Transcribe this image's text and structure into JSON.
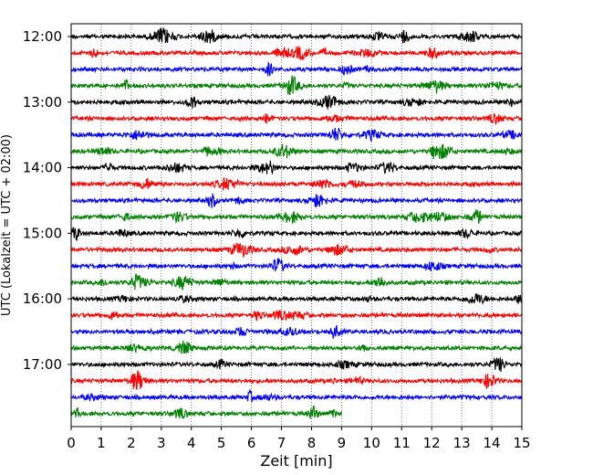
{
  "chart_data": {
    "type": "line",
    "title": "",
    "xlabel": "Zeit  [min]",
    "ylabel": "UTC (Lokalzeit = UTC + 02:00)",
    "xlim": [
      0,
      15
    ],
    "x_ticks": [
      "0",
      "1",
      "2",
      "3",
      "4",
      "5",
      "6",
      "7",
      "8",
      "9",
      "10",
      "11",
      "12",
      "13",
      "14",
      "15"
    ],
    "y_ticks": [
      "12:00",
      "13:00",
      "14:00",
      "15:00",
      "16:00",
      "17:00"
    ],
    "grid": "vertical dotted",
    "trace_colors": [
      "#000000",
      "#ff0000",
      "#0000ff",
      "#008000"
    ],
    "traces": [
      {
        "start": "12:00",
        "color": "#000000",
        "duration_min": 15
      },
      {
        "start": "12:15",
        "color": "#ff0000",
        "duration_min": 15
      },
      {
        "start": "12:30",
        "color": "#0000ff",
        "duration_min": 15
      },
      {
        "start": "12:45",
        "color": "#008000",
        "duration_min": 15
      },
      {
        "start": "13:00",
        "color": "#000000",
        "duration_min": 15
      },
      {
        "start": "13:15",
        "color": "#ff0000",
        "duration_min": 15
      },
      {
        "start": "13:30",
        "color": "#0000ff",
        "duration_min": 15
      },
      {
        "start": "13:45",
        "color": "#008000",
        "duration_min": 15
      },
      {
        "start": "14:00",
        "color": "#000000",
        "duration_min": 15
      },
      {
        "start": "14:15",
        "color": "#ff0000",
        "duration_min": 15
      },
      {
        "start": "14:30",
        "color": "#0000ff",
        "duration_min": 15
      },
      {
        "start": "14:45",
        "color": "#008000",
        "duration_min": 15
      },
      {
        "start": "15:00",
        "color": "#000000",
        "duration_min": 15
      },
      {
        "start": "15:15",
        "color": "#ff0000",
        "duration_min": 15
      },
      {
        "start": "15:30",
        "color": "#0000ff",
        "duration_min": 15
      },
      {
        "start": "15:45",
        "color": "#008000",
        "duration_min": 15
      },
      {
        "start": "16:00",
        "color": "#000000",
        "duration_min": 15
      },
      {
        "start": "16:15",
        "color": "#ff0000",
        "duration_min": 15
      },
      {
        "start": "16:30",
        "color": "#0000ff",
        "duration_min": 15
      },
      {
        "start": "16:45",
        "color": "#008000",
        "duration_min": 15
      },
      {
        "start": "17:00",
        "color": "#000000",
        "duration_min": 15
      },
      {
        "start": "17:15",
        "color": "#ff0000",
        "duration_min": 15
      },
      {
        "start": "17:30",
        "color": "#0000ff",
        "duration_min": 15
      },
      {
        "start": "17:45",
        "color": "#008000",
        "duration_min": 9
      }
    ]
  }
}
